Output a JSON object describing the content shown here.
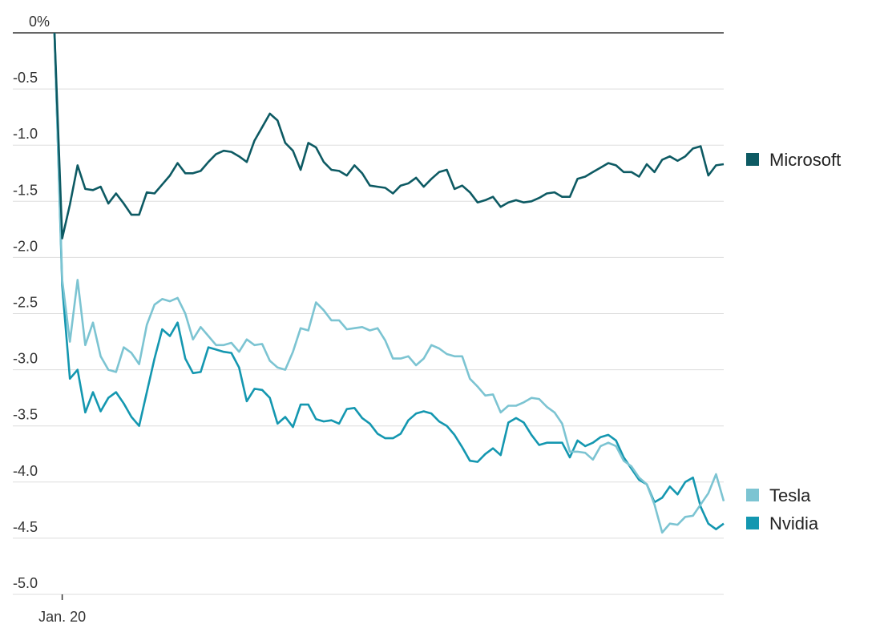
{
  "chart_data": {
    "type": "line",
    "categories": [
      null,
      "Jan. 20",
      null,
      null,
      null,
      null,
      null,
      null,
      null,
      null,
      null,
      null,
      null,
      null,
      null,
      null,
      null,
      null,
      null,
      null,
      null,
      null,
      null,
      null,
      null,
      null,
      null,
      null,
      null,
      null,
      null,
      null,
      null,
      null,
      null,
      null,
      null,
      null,
      null,
      null,
      null,
      null,
      null,
      null,
      null,
      null,
      null,
      null,
      null,
      null,
      null,
      null,
      null,
      null,
      null,
      null,
      null,
      null,
      null,
      null,
      null,
      null,
      null,
      null,
      null,
      null,
      null,
      null,
      null,
      null,
      null,
      null,
      null,
      null,
      null,
      null,
      null,
      null,
      null,
      null,
      null,
      null,
      null,
      null,
      null,
      null,
      null,
      null
    ],
    "series": [
      {
        "name": "Microsoft",
        "color": "#0d5a63",
        "values": [
          0,
          -1.83,
          -1.53,
          -1.18,
          -1.39,
          -1.4,
          -1.37,
          -1.52,
          -1.43,
          -1.52,
          -1.62,
          -1.62,
          -1.42,
          -1.43,
          -1.35,
          -1.27,
          -1.16,
          -1.25,
          -1.25,
          -1.23,
          -1.15,
          -1.08,
          -1.05,
          -1.06,
          -1.1,
          -1.15,
          -0.96,
          -0.84,
          -0.72,
          -0.78,
          -0.98,
          -1.05,
          -1.22,
          -0.98,
          -1.02,
          -1.15,
          -1.22,
          -1.23,
          -1.27,
          -1.18,
          -1.25,
          -1.36,
          -1.37,
          -1.38,
          -1.43,
          -1.36,
          -1.34,
          -1.29,
          -1.37,
          -1.3,
          -1.24,
          -1.22,
          -1.39,
          -1.36,
          -1.42,
          -1.51,
          -1.49,
          -1.46,
          -1.55,
          -1.51,
          -1.49,
          -1.51,
          -1.5,
          -1.47,
          -1.43,
          -1.42,
          -1.46,
          -1.46,
          -1.3,
          -1.28,
          -1.24,
          -1.2,
          -1.16,
          -1.18,
          -1.24,
          -1.24,
          -1.28,
          -1.17,
          -1.24,
          -1.13,
          -1.1,
          -1.14,
          -1.1,
          -1.03,
          -1.01,
          -1.27,
          -1.18,
          -1.17
        ]
      },
      {
        "name": "Tesla",
        "color": "#7cc4d2",
        "values": [
          0,
          -2.2,
          -2.75,
          -2.2,
          -2.78,
          -2.58,
          -2.88,
          -3.0,
          -3.02,
          -2.8,
          -2.85,
          -2.95,
          -2.6,
          -2.42,
          -2.37,
          -2.39,
          -2.36,
          -2.5,
          -2.73,
          -2.62,
          -2.7,
          -2.78,
          -2.78,
          -2.76,
          -2.84,
          -2.73,
          -2.78,
          -2.77,
          -2.92,
          -2.98,
          -3.0,
          -2.84,
          -2.63,
          -2.65,
          -2.4,
          -2.47,
          -2.56,
          -2.56,
          -2.64,
          -2.63,
          -2.62,
          -2.65,
          -2.63,
          -2.74,
          -2.9,
          -2.9,
          -2.88,
          -2.96,
          -2.9,
          -2.78,
          -2.81,
          -2.86,
          -2.88,
          -2.88,
          -3.08,
          -3.15,
          -3.23,
          -3.22,
          -3.38,
          -3.32,
          -3.32,
          -3.29,
          -3.25,
          -3.26,
          -3.33,
          -3.38,
          -3.48,
          -3.73,
          -3.73,
          -3.74,
          -3.8,
          -3.68,
          -3.65,
          -3.68,
          -3.81,
          -3.86,
          -3.96,
          -4.02,
          -4.2,
          -4.45,
          -4.37,
          -4.38,
          -4.31,
          -4.3,
          -4.2,
          -4.1,
          -3.93,
          -4.17
        ]
      },
      {
        "name": "Nvidia",
        "color": "#1497b0",
        "values": [
          0,
          -2.25,
          -3.08,
          -3.0,
          -3.38,
          -3.2,
          -3.37,
          -3.25,
          -3.2,
          -3.3,
          -3.42,
          -3.5,
          -3.2,
          -2.9,
          -2.64,
          -2.7,
          -2.58,
          -2.9,
          -3.03,
          -3.02,
          -2.8,
          -2.82,
          -2.84,
          -2.85,
          -2.98,
          -3.28,
          -3.17,
          -3.18,
          -3.25,
          -3.48,
          -3.42,
          -3.51,
          -3.31,
          -3.31,
          -3.44,
          -3.46,
          -3.45,
          -3.48,
          -3.35,
          -3.34,
          -3.43,
          -3.48,
          -3.57,
          -3.61,
          -3.61,
          -3.57,
          -3.45,
          -3.39,
          -3.37,
          -3.39,
          -3.46,
          -3.5,
          -3.58,
          -3.69,
          -3.81,
          -3.82,
          -3.75,
          -3.7,
          -3.76,
          -3.47,
          -3.43,
          -3.47,
          -3.58,
          -3.67,
          -3.65,
          -3.65,
          -3.65,
          -3.78,
          -3.63,
          -3.68,
          -3.65,
          -3.6,
          -3.58,
          -3.63,
          -3.78,
          -3.88,
          -3.98,
          -4.02,
          -4.18,
          -4.14,
          -4.04,
          -4.11,
          -4.0,
          -3.96,
          -4.22,
          -4.37,
          -4.42,
          -4.37
        ]
      }
    ],
    "ylim": [
      -5,
      0
    ],
    "yticks": [
      {
        "value": 0,
        "label": "0%"
      },
      -0.5,
      {
        "value": -1,
        "label": "-1.0"
      },
      -1.5,
      {
        "value": -2,
        "label": "-2.0"
      },
      -2.5,
      {
        "value": -3,
        "label": "-3.0"
      },
      -3.5,
      {
        "value": -4,
        "label": "-4.0"
      },
      -4.5,
      {
        "value": -5,
        "label": "-5.0"
      }
    ],
    "grid": true
  }
}
